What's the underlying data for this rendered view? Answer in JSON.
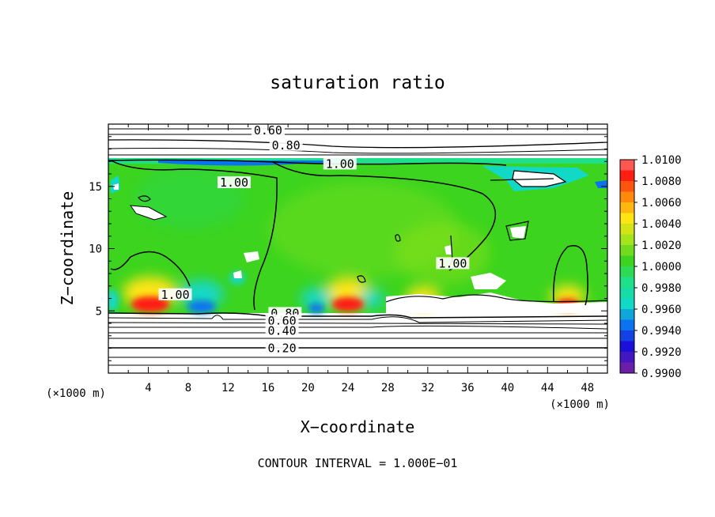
{
  "chart_data": {
    "type": "heatmap",
    "title": "saturation ratio",
    "xlabel": "X−coordinate",
    "ylabel": "Z−coordinate",
    "x_unit": "(×1000 m)",
    "z_unit": "(×1000 m)",
    "xlim": [
      0,
      50
    ],
    "ylim": [
      0,
      20
    ],
    "x_ticks": [
      4,
      8,
      12,
      16,
      20,
      24,
      28,
      32,
      36,
      40,
      44,
      48
    ],
    "y_ticks": [
      5,
      10,
      15
    ],
    "colorbar": {
      "levels": [
        "0.9900",
        "0.9920",
        "0.9940",
        "0.9960",
        "0.9980",
        "1.0000",
        "1.0020",
        "1.0040",
        "1.0060",
        "1.0080",
        "1.0100"
      ],
      "colors": [
        "#6a1fa8",
        "#1a10d8",
        "#0a74f0",
        "#12d8c6",
        "#1ee08a",
        "#3cd41e",
        "#a4e41c",
        "#ffe414",
        "#ff8a0a",
        "#ff1e12",
        "#ff9090"
      ]
    },
    "contour_labels": [
      {
        "text": "0.60",
        "x": 16.0,
        "y": 19.5
      },
      {
        "text": "0.80",
        "x": 17.8,
        "y": 18.3
      },
      {
        "text": "1.00",
        "x": 23.2,
        "y": 16.8
      },
      {
        "text": "1.00",
        "x": 12.6,
        "y": 15.3
      },
      {
        "text": "1.00",
        "x": 6.7,
        "y": 6.3
      },
      {
        "text": "1.00",
        "x": 34.5,
        "y": 8.8
      },
      {
        "text": "0.80",
        "x": 17.7,
        "y": 4.8
      },
      {
        "text": "0.60",
        "x": 17.4,
        "y": 4.2
      },
      {
        "text": "0.40",
        "x": 17.4,
        "y": 3.4
      },
      {
        "text": "0.20",
        "x": 17.4,
        "y": 2.0
      }
    ],
    "contour_interval": "CONTOUR INTERVAL = 1.000E−01"
  }
}
